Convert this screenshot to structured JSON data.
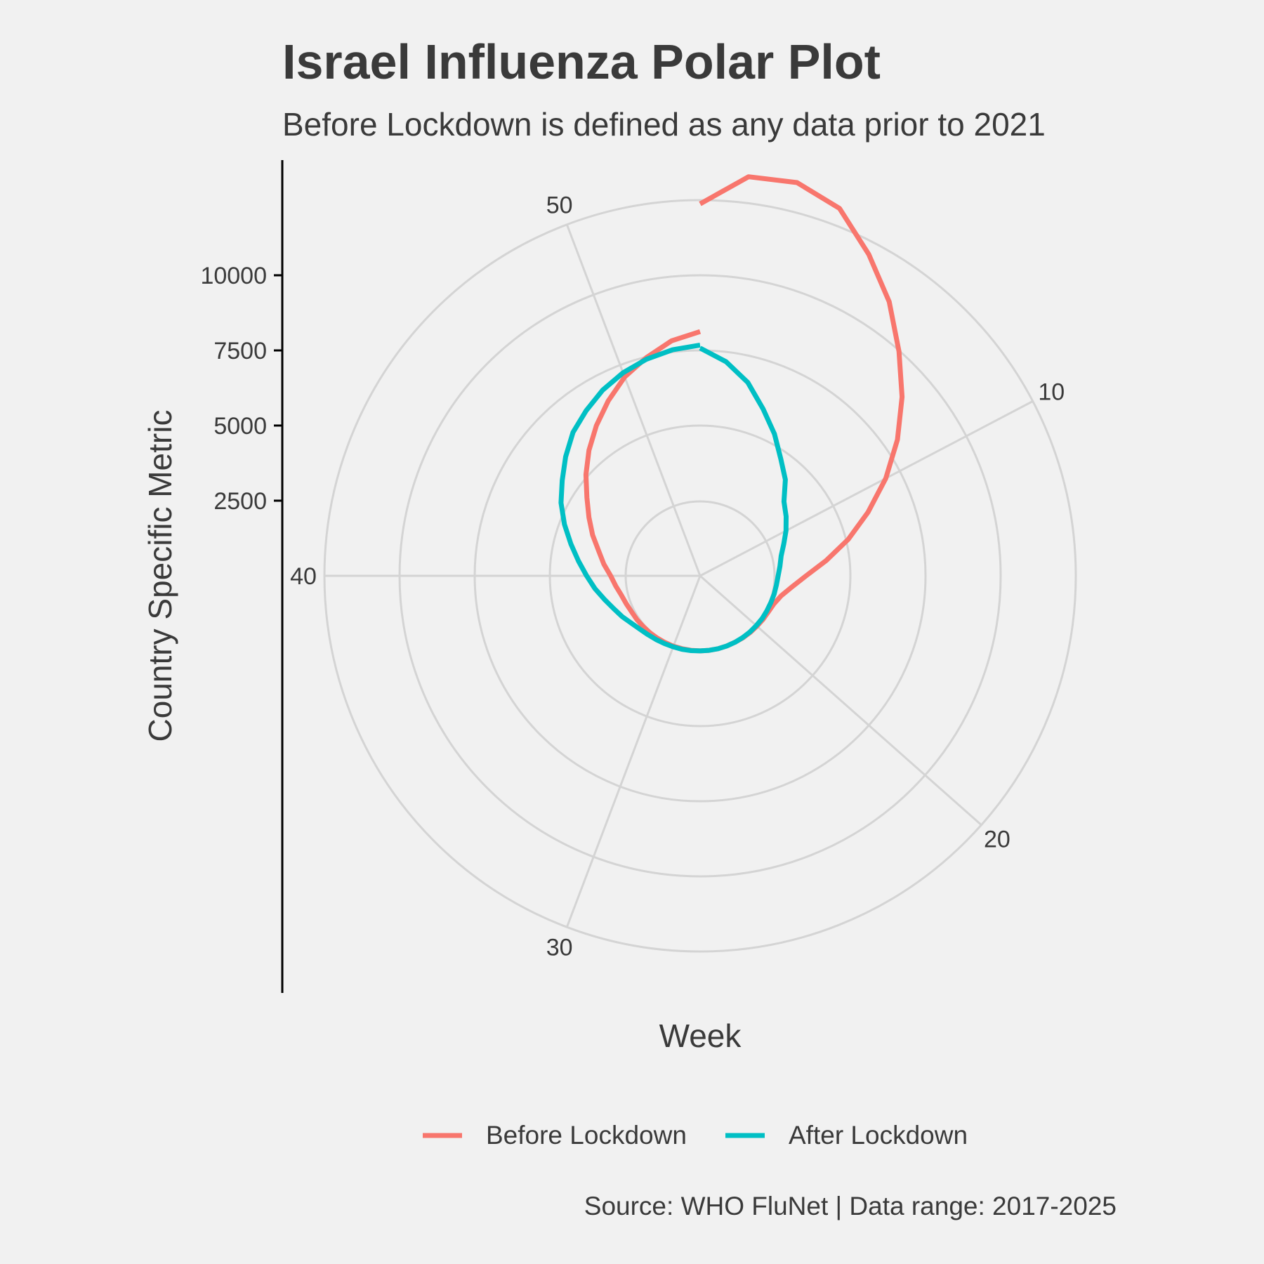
{
  "title": "Israel Influenza Polar Plot",
  "subtitle": "Before Lockdown is defined as any data prior to 2021",
  "caption": "Source: WHO FluNet | Data range: 2017-2025",
  "colors": {
    "background": "#f1f1f1",
    "grid": "#d4d4d4",
    "text": "#3a3a3a",
    "before": "#f8766d",
    "after": "#00bfc4",
    "axis": "#000000"
  },
  "chart_data": {
    "type": "line",
    "coord": "polar",
    "xlabel": "Week",
    "ylabel": "Country Specific Metric",
    "x_ticks": [
      10,
      20,
      30,
      40,
      50
    ],
    "y_ticks": [
      2500,
      5000,
      7500,
      10000
    ],
    "xlim": [
      1,
      53
    ],
    "ylim": [
      0,
      12500
    ],
    "grid": true,
    "legend_position": "bottom",
    "series": [
      {
        "name": "Before Lockdown",
        "color": "#f8766d",
        "x": [
          1,
          2,
          3,
          4,
          5,
          6,
          7,
          8,
          9,
          10,
          11,
          12,
          13,
          14,
          15,
          16,
          17,
          18,
          19,
          20,
          21,
          22,
          23,
          24,
          25,
          26,
          27,
          28,
          29,
          30,
          31,
          32,
          33,
          34,
          35,
          36,
          37,
          38,
          39,
          40,
          41,
          42,
          43,
          44,
          45,
          46,
          47,
          48,
          49,
          50,
          51,
          52,
          53
        ],
        "y": [
          9900,
          10900,
          11000,
          10600,
          9600,
          8600,
          7500,
          6500,
          5500,
          4500,
          3500,
          2600,
          1750,
          1050,
          600,
          300,
          150,
          90,
          70,
          50,
          40,
          30,
          20,
          20,
          20,
          20,
          20,
          20,
          20,
          30,
          30,
          40,
          50,
          60,
          80,
          100,
          150,
          220,
          350,
          500,
          750,
          1000,
          1350,
          1700,
          2100,
          2600,
          3100,
          3600,
          4100,
          4600,
          5000,
          5400,
          5650
        ]
      },
      {
        "name": "After Lockdown",
        "color": "#00bfc4",
        "x": [
          1,
          2,
          3,
          4,
          5,
          6,
          7,
          8,
          9,
          10,
          11,
          12,
          13,
          14,
          15,
          16,
          17,
          18,
          19,
          20,
          21,
          22,
          23,
          24,
          25,
          26,
          27,
          28,
          29,
          30,
          31,
          32,
          33,
          34,
          35,
          36,
          37,
          38,
          39,
          40,
          41,
          42,
          43,
          44,
          45,
          46,
          47,
          48,
          49,
          50,
          51,
          52,
          53
        ],
        "y": [
          5100,
          4700,
          4150,
          3450,
          2850,
          2250,
          1800,
          1250,
          1000,
          750,
          500,
          300,
          200,
          120,
          80,
          60,
          40,
          30,
          30,
          20,
          20,
          20,
          20,
          20,
          20,
          20,
          20,
          30,
          40,
          50,
          70,
          100,
          140,
          200,
          300,
          450,
          600,
          800,
          1050,
          1300,
          1600,
          1950,
          2350,
          2750,
          3100,
          3500,
          3900,
          4200,
          4500,
          4750,
          4950,
          5100,
          5200
        ]
      }
    ]
  }
}
